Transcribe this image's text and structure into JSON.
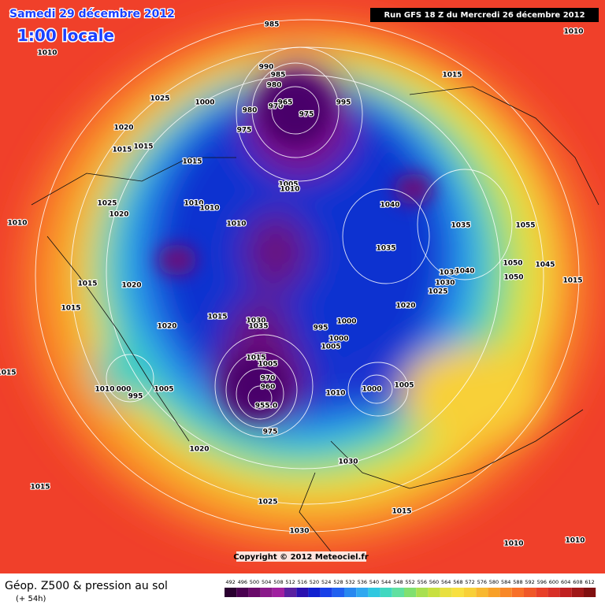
{
  "header": {
    "date": "Samedi 29 décembre 2012",
    "time": "1:00 locale",
    "run": "Run GFS 18 Z du Mercredi 26 décembre 2012"
  },
  "footer": {
    "copyright": "Copyright © 2012 Meteociel.fr",
    "product": "Géop. Z500 & pression au sol",
    "lead": "(+ 54h)"
  },
  "scale": [
    492,
    496,
    500,
    504,
    508,
    512,
    516,
    520,
    524,
    528,
    532,
    536,
    540,
    544,
    548,
    552,
    556,
    560,
    564,
    568,
    572,
    576,
    580,
    584,
    588,
    592,
    596,
    600,
    604,
    608,
    612
  ],
  "pressure_labels": [
    1010,
    1010,
    985,
    990,
    985,
    980,
    970,
    965,
    980,
    975,
    995,
    975,
    1015,
    1025,
    1000,
    1020,
    1015,
    1015,
    1015,
    1005,
    1010,
    1040,
    1025,
    1020,
    1010,
    1010,
    1010,
    1010,
    1035,
    1055,
    1035,
    1050,
    1045,
    1030,
    1040,
    1050,
    1015,
    1020,
    1030,
    1025,
    1015,
    1015,
    1020,
    1015,
    1030,
    1035,
    1000,
    995,
    1020,
    1000,
    1005,
    1015,
    1005,
    970,
    960,
    1015,
    1010,
    "000",
    995,
    1005,
    1010,
    1000,
    1005,
    "955.0",
    975,
    1020,
    1030,
    1015,
    1025,
    1015,
    1030,
    1010,
    1010
  ]
}
